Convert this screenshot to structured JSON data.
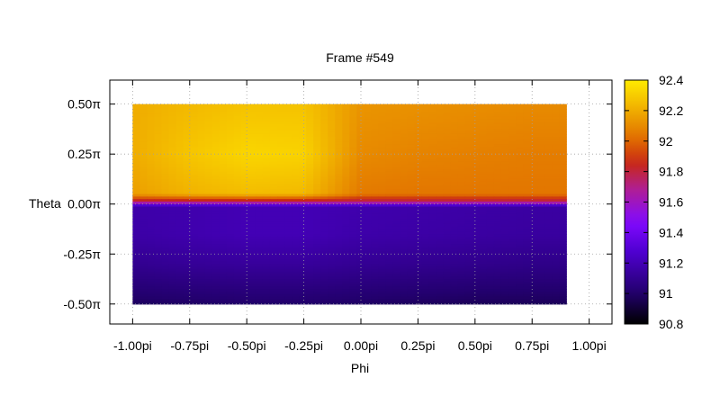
{
  "chart_data": {
    "type": "heatmap",
    "title": "Frame #549",
    "xlabel": "Phi",
    "ylabel": "Theta",
    "xlim": [
      -1.1,
      1.1
    ],
    "ylim": [
      -0.6,
      0.62
    ],
    "x_ticks": [
      {
        "value": -1.0,
        "label": "-1.00pi"
      },
      {
        "value": -0.75,
        "label": "-0.75pi"
      },
      {
        "value": -0.5,
        "label": "-0.50pi"
      },
      {
        "value": -0.25,
        "label": "-0.25pi"
      },
      {
        "value": 0.0,
        "label": "0.00pi"
      },
      {
        "value": 0.25,
        "label": "0.25pi"
      },
      {
        "value": 0.5,
        "label": "0.50pi"
      },
      {
        "value": 0.75,
        "label": "0.75pi"
      },
      {
        "value": 1.0,
        "label": "1.00pi"
      }
    ],
    "y_ticks": [
      {
        "value": 0.5,
        "label": "0.50π"
      },
      {
        "value": 0.25,
        "label": "0.25π"
      },
      {
        "value": 0.0,
        "label": "0.00π"
      },
      {
        "value": -0.25,
        "label": "-0.25π"
      },
      {
        "value": -0.5,
        "label": "-0.50π"
      }
    ],
    "grid": true,
    "data_extent": {
      "phi": [
        -1.0,
        0.9
      ],
      "theta": [
        -0.5,
        0.5
      ]
    },
    "colorbar": {
      "range": [
        90.8,
        92.4
      ],
      "ticks": [
        {
          "value": 92.4,
          "label": "92.4"
        },
        {
          "value": 92.2,
          "label": "92.2"
        },
        {
          "value": 92.0,
          "label": "92"
        },
        {
          "value": 91.8,
          "label": "91.8"
        },
        {
          "value": 91.6,
          "label": "91.6"
        },
        {
          "value": 91.4,
          "label": "91.4"
        },
        {
          "value": 91.2,
          "label": "91.2"
        },
        {
          "value": 91.0,
          "label": "91"
        },
        {
          "value": 90.8,
          "label": "90.8"
        }
      ],
      "palette": "black-blue-purple-red-orange-yellow"
    },
    "values": {
      "phi": [
        -1.0,
        -0.75,
        -0.5,
        -0.25,
        0.0,
        0.25,
        0.5,
        0.75,
        0.9
      ],
      "theta": [
        0.5,
        0.25,
        0.05,
        0.01,
        -0.01,
        -0.15,
        -0.3,
        -0.5
      ],
      "z": [
        [
          92.2,
          92.24,
          92.27,
          92.27,
          92.13,
          92.12,
          92.11,
          92.1,
          92.1
        ],
        [
          92.2,
          92.28,
          92.33,
          92.32,
          92.1,
          92.08,
          92.07,
          92.06,
          92.06
        ],
        [
          92.16,
          92.22,
          92.25,
          92.24,
          92.05,
          92.04,
          92.04,
          92.04,
          92.04
        ],
        [
          91.75,
          91.75,
          91.75,
          91.75,
          91.75,
          91.75,
          91.75,
          91.75,
          91.75
        ],
        [
          91.17,
          91.18,
          91.2,
          91.2,
          91.18,
          91.17,
          91.16,
          91.15,
          91.15
        ],
        [
          91.16,
          91.18,
          91.2,
          91.2,
          91.17,
          91.16,
          91.15,
          91.14,
          91.14
        ],
        [
          91.1,
          91.12,
          91.13,
          91.13,
          91.11,
          91.1,
          91.09,
          91.08,
          91.08
        ],
        [
          90.98,
          90.99,
          91.0,
          91.0,
          90.99,
          90.98,
          90.97,
          90.97,
          90.97
        ]
      ]
    }
  }
}
